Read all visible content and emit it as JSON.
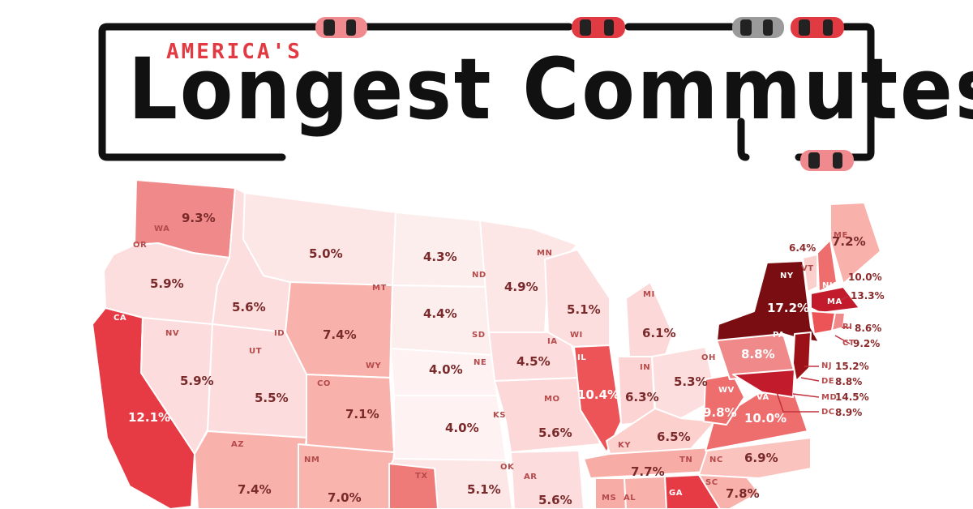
{
  "title": {
    "kicker": "AMERICA'S",
    "headline": "Longest Commutes"
  },
  "colors": {
    "accent": "#e23a42",
    "frame": "#111111",
    "car_red": "#e23a42",
    "car_gray": "#9a9a9a"
  },
  "icons": [
    "car-icon"
  ],
  "states": {
    "WA": {
      "abbr": "WA",
      "value": "9.3%"
    },
    "OR": {
      "abbr": "OR",
      "value": "5.9%"
    },
    "CA": {
      "abbr": "CA",
      "value": "12.1%"
    },
    "NV": {
      "abbr": "NV",
      "value": "5.9%"
    },
    "ID": {
      "abbr": "ID",
      "value": "5.6%"
    },
    "MT": {
      "abbr": "MT",
      "value": "5.0%"
    },
    "WY": {
      "abbr": "WY",
      "value": "7.4%"
    },
    "UT": {
      "abbr": "UT",
      "value": "5.5%"
    },
    "CO": {
      "abbr": "CO",
      "value": "7.1%"
    },
    "AZ": {
      "abbr": "AZ",
      "value": "7.4%"
    },
    "NM": {
      "abbr": "NM",
      "value": "7.0%"
    },
    "ND": {
      "abbr": "ND",
      "value": "4.3%"
    },
    "SD": {
      "abbr": "SD",
      "value": "4.4%"
    },
    "NE": {
      "abbr": "NE",
      "value": "4.0%"
    },
    "KS": {
      "abbr": "KS",
      "value": "4.0%"
    },
    "OK": {
      "abbr": "OK",
      "value": "5.1%"
    },
    "TX": {
      "abbr": "TX",
      "value": ""
    },
    "MN": {
      "abbr": "MN",
      "value": "4.9%"
    },
    "IA": {
      "abbr": "IA",
      "value": "4.5%"
    },
    "MO": {
      "abbr": "MO",
      "value": "5.6%"
    },
    "AR": {
      "abbr": "AR",
      "value": "5.6%"
    },
    "WI": {
      "abbr": "WI",
      "value": "5.1%"
    },
    "IL": {
      "abbr": "IL",
      "value": "10.4%"
    },
    "MI": {
      "abbr": "MI",
      "value": "6.1%"
    },
    "IN": {
      "abbr": "IN",
      "value": "6.3%"
    },
    "OH": {
      "abbr": "OH",
      "value": "5.3%"
    },
    "KY": {
      "abbr": "KY",
      "value": "6.5%"
    },
    "TN": {
      "abbr": "TN",
      "value": "7.7%"
    },
    "MS": {
      "abbr": "MS",
      "value": ""
    },
    "AL": {
      "abbr": "AL",
      "value": ""
    },
    "GA": {
      "abbr": "GA",
      "value": ""
    },
    "SC": {
      "abbr": "SC",
      "value": "7.8%"
    },
    "NC": {
      "abbr": "NC",
      "value": "6.9%"
    },
    "VA": {
      "abbr": "VA",
      "value": "10.0%"
    },
    "WV": {
      "abbr": "WV",
      "value": "9.8%"
    },
    "PA": {
      "abbr": "PA",
      "value": "8.8%"
    },
    "NY": {
      "abbr": "NY",
      "value": "17.2%"
    },
    "VT": {
      "abbr": "VT",
      "value": "6.4%"
    },
    "NH": {
      "abbr": "NH",
      "value": "10.0%"
    },
    "ME": {
      "abbr": "ME",
      "value": "7.2%"
    },
    "MA": {
      "abbr": "MA",
      "value": "13.3%"
    },
    "RI": {
      "abbr": "RI",
      "value": "8.6%"
    },
    "CT": {
      "abbr": "CT",
      "value": "9.2%"
    },
    "NJ": {
      "abbr": "NJ",
      "value": "15.2%"
    },
    "DE": {
      "abbr": "DE",
      "value": "8.8%"
    },
    "MD": {
      "abbr": "MD",
      "value": "14.5%"
    },
    "DC": {
      "abbr": "DC",
      "value": "8.9%"
    }
  }
}
